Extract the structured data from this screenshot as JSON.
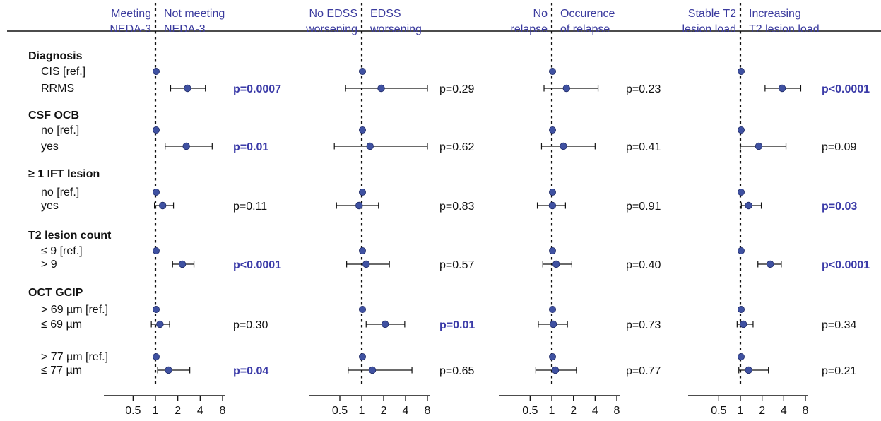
{
  "colors": {
    "point": "#3f51a1",
    "point_stroke": "#1f2a66",
    "significant": "#3b3ba8",
    "header": "#3b3b9e",
    "text": "#111111"
  },
  "chart_data": {
    "type": "forest",
    "x_scale": "log2",
    "xlim": [
      0.35,
      9
    ],
    "x_ticks": [
      "0.5",
      "1",
      "2",
      "4",
      "8"
    ],
    "reference_line": 1,
    "groups": [
      {
        "label": "Diagnosis",
        "rows": [
          {
            "label": "CIS [ref.]",
            "ref": true
          },
          {
            "label": "RRMS",
            "ref": false,
            "p_row": true
          }
        ]
      },
      {
        "label": "CSF OCB",
        "rows": [
          {
            "label": "no [ref.]",
            "ref": true
          },
          {
            "label": "yes",
            "ref": false,
            "p_row": true
          }
        ]
      },
      {
        "label": "≥ 1 IFT lesion",
        "rows": [
          {
            "label": "no [ref.]",
            "ref": true
          },
          {
            "label": "yes",
            "ref": false,
            "p_row": true
          }
        ]
      },
      {
        "label": "T2 lesion count",
        "rows": [
          {
            "label": "≤  9 [ref.]",
            "ref": true
          },
          {
            "label": "> 9",
            "ref": false,
            "p_row": true
          }
        ]
      },
      {
        "label": "OCT GCIP",
        "rows": [
          {
            "label": "> 69 µm [ref.]",
            "ref": true
          },
          {
            "label": "≤ 69 µm",
            "ref": false,
            "p_row": true
          },
          {
            "label": "> 77 µm [ref.]",
            "ref": true
          },
          {
            "label": "≤ 77 µm",
            "ref": false,
            "p_row": true
          }
        ]
      }
    ],
    "panels": [
      {
        "left_header": [
          "Meeting",
          "NEDA-3"
        ],
        "right_header": [
          "Not meeting",
          "NEDA-3"
        ],
        "estimates": [
          {
            "row": "RRMS",
            "or": 2.7,
            "lo": 1.6,
            "hi": 4.7,
            "p": "p=0.0007",
            "sig": true
          },
          {
            "row": "CSF OCB yes",
            "or": 2.6,
            "lo": 1.35,
            "hi": 5.8,
            "p": "p=0.01",
            "sig": true
          },
          {
            "row": "≥ 1 IFT lesion yes",
            "or": 1.25,
            "lo": 0.97,
            "hi": 1.75,
            "p": "p=0.11",
            "sig": false
          },
          {
            "row": "> 9",
            "or": 2.3,
            "lo": 1.7,
            "hi": 3.3,
            "p": "p<0.0001",
            "sig": true
          },
          {
            "row": "≤ 69 µm",
            "or": 1.15,
            "lo": 0.88,
            "hi": 1.55,
            "p": "p=0.30",
            "sig": false
          },
          {
            "row": "≤ 77 µm",
            "or": 1.5,
            "lo": 1.07,
            "hi": 2.9,
            "p": "p=0.04",
            "sig": true
          }
        ]
      },
      {
        "left_header": [
          "No EDSS",
          "worsening"
        ],
        "right_header": [
          "EDSS",
          "worsening"
        ],
        "estimates": [
          {
            "row": "RRMS",
            "or": 1.85,
            "lo": 0.6,
            "hi": 8.0,
            "p": "p=0.29",
            "sig": false
          },
          {
            "row": "CSF OCB yes",
            "or": 1.3,
            "lo": 0.42,
            "hi": 8.0,
            "p": "p=0.62",
            "sig": false
          },
          {
            "row": "≥ 1 IFT lesion yes",
            "or": 0.92,
            "lo": 0.45,
            "hi": 1.7,
            "p": "p=0.83",
            "sig": false
          },
          {
            "row": "> 9",
            "or": 1.15,
            "lo": 0.62,
            "hi": 2.4,
            "p": "p=0.57",
            "sig": false
          },
          {
            "row": "≤ 69 µm",
            "or": 2.1,
            "lo": 1.15,
            "hi": 3.9,
            "p": "p=0.01",
            "sig": true
          },
          {
            "row": "≤ 77 µm",
            "or": 1.4,
            "lo": 0.65,
            "hi": 4.9,
            "p": "p=0.65",
            "sig": false
          }
        ]
      },
      {
        "left_header": [
          "No",
          "relapse"
        ],
        "right_header": [
          "Occurence",
          "of relapse"
        ],
        "estimates": [
          {
            "row": "RRMS",
            "or": 1.6,
            "lo": 0.78,
            "hi": 4.4,
            "p": "p=0.23",
            "sig": false
          },
          {
            "row": "CSF OCB yes",
            "or": 1.45,
            "lo": 0.72,
            "hi": 4.0,
            "p": "p=0.41",
            "sig": false
          },
          {
            "row": "≥ 1 IFT lesion yes",
            "or": 1.02,
            "lo": 0.63,
            "hi": 1.55,
            "p": "p=0.91",
            "sig": false
          },
          {
            "row": "> 9",
            "or": 1.15,
            "lo": 0.75,
            "hi": 1.9,
            "p": "p=0.40",
            "sig": false
          },
          {
            "row": "≤ 69 µm",
            "or": 1.05,
            "lo": 0.65,
            "hi": 1.65,
            "p": "p=0.73",
            "sig": false
          },
          {
            "row": "≤ 77 µm",
            "or": 1.12,
            "lo": 0.6,
            "hi": 2.2,
            "p": "p=0.77",
            "sig": false
          }
        ]
      },
      {
        "left_header": [
          "Stable T2",
          "lesion load"
        ],
        "right_header": [
          "Increasing",
          "T2 lesion load"
        ],
        "estimates": [
          {
            "row": "RRMS",
            "or": 3.8,
            "lo": 2.2,
            "hi": 6.9,
            "p": "p<0.0001",
            "sig": true
          },
          {
            "row": "CSF OCB yes",
            "or": 1.8,
            "lo": 1.0,
            "hi": 4.3,
            "p": "p=0.09",
            "sig": false
          },
          {
            "row": "≥ 1 IFT lesion yes",
            "or": 1.3,
            "lo": 1.03,
            "hi": 1.95,
            "p": "p=0.03",
            "sig": true
          },
          {
            "row": "> 9",
            "or": 2.6,
            "lo": 1.75,
            "hi": 3.7,
            "p": "p<0.0001",
            "sig": true
          },
          {
            "row": "≤ 69 µm",
            "or": 1.1,
            "lo": 0.9,
            "hi": 1.5,
            "p": "p=0.34",
            "sig": false
          },
          {
            "row": "≤ 77 µm",
            "or": 1.3,
            "lo": 0.95,
            "hi": 2.45,
            "p": "p=0.21",
            "sig": false
          }
        ]
      }
    ]
  }
}
